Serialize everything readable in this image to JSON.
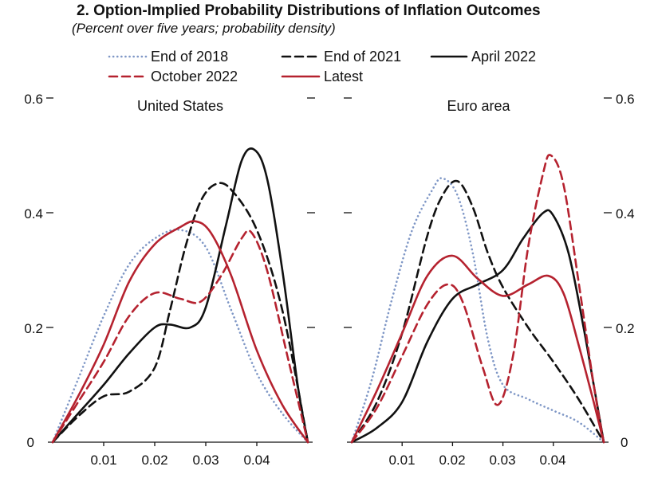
{
  "chart_data": {
    "type": "line",
    "title": "2. Option-Implied Probability Distributions of Inflation Outcomes",
    "subtitle": "(Percent over five years; probability density)",
    "legend": [
      {
        "name": "End of 2018",
        "color": "#7f97c6",
        "style": "dotted"
      },
      {
        "name": "End of 2021",
        "color": "#111111",
        "style": "dashed"
      },
      {
        "name": "April 2022",
        "color": "#111111",
        "style": "solid"
      },
      {
        "name": "October 2022",
        "color": "#b5222f",
        "style": "dashed"
      },
      {
        "name": "Latest",
        "color": "#b5222f",
        "style": "solid"
      }
    ],
    "y_tick_labels": [
      "0",
      "0.2",
      "0.4",
      "0.6"
    ],
    "x_tick_labels": [
      "0.01",
      "0.02",
      "0.03",
      "0.04"
    ],
    "panels": [
      {
        "title": "United States",
        "xlim": [
          0,
          0.05
        ],
        "ylim": [
          0,
          0.6
        ],
        "xticks": [
          0.01,
          0.02,
          0.03,
          0.04
        ],
        "yticks": [
          0,
          0.2,
          0.4,
          0.6
        ],
        "series": [
          {
            "name": "End of 2018",
            "points": [
              [
                0,
                0
              ],
              [
                0.005,
                0.11
              ],
              [
                0.01,
                0.22
              ],
              [
                0.015,
                0.31
              ],
              [
                0.02,
                0.355
              ],
              [
                0.025,
                0.37
              ],
              [
                0.03,
                0.34
              ],
              [
                0.035,
                0.23
              ],
              [
                0.04,
                0.12
              ],
              [
                0.045,
                0.05
              ],
              [
                0.05,
                0
              ]
            ]
          },
          {
            "name": "End of 2021",
            "points": [
              [
                0,
                0
              ],
              [
                0.005,
                0.045
              ],
              [
                0.01,
                0.08
              ],
              [
                0.015,
                0.088
              ],
              [
                0.02,
                0.13
              ],
              [
                0.023,
                0.23
              ],
              [
                0.026,
                0.34
              ],
              [
                0.029,
                0.42
              ],
              [
                0.032,
                0.45
              ],
              [
                0.035,
                0.44
              ],
              [
                0.04,
                0.37
              ],
              [
                0.045,
                0.23
              ],
              [
                0.05,
                0
              ]
            ]
          },
          {
            "name": "April 2022",
            "points": [
              [
                0,
                0
              ],
              [
                0.005,
                0.05
              ],
              [
                0.01,
                0.1
              ],
              [
                0.015,
                0.155
              ],
              [
                0.02,
                0.2
              ],
              [
                0.023,
                0.205
              ],
              [
                0.027,
                0.2
              ],
              [
                0.03,
                0.235
              ],
              [
                0.034,
                0.38
              ],
              [
                0.037,
                0.49
              ],
              [
                0.0395,
                0.51
              ],
              [
                0.042,
                0.46
              ],
              [
                0.045,
                0.3
              ],
              [
                0.048,
                0.1
              ],
              [
                0.05,
                0
              ]
            ]
          },
          {
            "name": "October 2022",
            "points": [
              [
                0,
                0
              ],
              [
                0.005,
                0.07
              ],
              [
                0.01,
                0.14
              ],
              [
                0.015,
                0.22
              ],
              [
                0.02,
                0.26
              ],
              [
                0.025,
                0.25
              ],
              [
                0.029,
                0.245
              ],
              [
                0.033,
                0.29
              ],
              [
                0.037,
                0.355
              ],
              [
                0.039,
                0.365
              ],
              [
                0.042,
                0.3
              ],
              [
                0.046,
                0.15
              ],
              [
                0.05,
                0
              ]
            ]
          },
          {
            "name": "Latest",
            "points": [
              [
                0,
                0
              ],
              [
                0.005,
                0.08
              ],
              [
                0.01,
                0.17
              ],
              [
                0.015,
                0.28
              ],
              [
                0.02,
                0.345
              ],
              [
                0.025,
                0.375
              ],
              [
                0.028,
                0.385
              ],
              [
                0.031,
                0.365
              ],
              [
                0.035,
                0.29
              ],
              [
                0.04,
                0.16
              ],
              [
                0.045,
                0.065
              ],
              [
                0.05,
                0
              ]
            ]
          }
        ]
      },
      {
        "title": "Euro area",
        "xlim": [
          0,
          0.05
        ],
        "ylim": [
          0,
          0.6
        ],
        "xticks": [
          0.01,
          0.02,
          0.03,
          0.04
        ],
        "yticks": [
          0,
          0.2,
          0.4,
          0.6
        ],
        "series": [
          {
            "name": "End of 2018",
            "points": [
              [
                0,
                0
              ],
              [
                0.004,
                0.11
              ],
              [
                0.008,
                0.25
              ],
              [
                0.012,
                0.37
              ],
              [
                0.016,
                0.44
              ],
              [
                0.018,
                0.46
              ],
              [
                0.021,
                0.43
              ],
              [
                0.024,
                0.33
              ],
              [
                0.027,
                0.18
              ],
              [
                0.03,
                0.1
              ],
              [
                0.035,
                0.075
              ],
              [
                0.04,
                0.055
              ],
              [
                0.045,
                0.035
              ],
              [
                0.05,
                0
              ]
            ]
          },
          {
            "name": "End of 2021",
            "points": [
              [
                0,
                0
              ],
              [
                0.005,
                0.07
              ],
              [
                0.01,
                0.19
              ],
              [
                0.015,
                0.36
              ],
              [
                0.018,
                0.43
              ],
              [
                0.021,
                0.455
              ],
              [
                0.024,
                0.41
              ],
              [
                0.027,
                0.33
              ],
              [
                0.03,
                0.27
              ],
              [
                0.035,
                0.2
              ],
              [
                0.04,
                0.14
              ],
              [
                0.045,
                0.075
              ],
              [
                0.05,
                0
              ]
            ]
          },
          {
            "name": "April 2022",
            "points": [
              [
                0,
                0
              ],
              [
                0.005,
                0.025
              ],
              [
                0.01,
                0.07
              ],
              [
                0.015,
                0.175
              ],
              [
                0.02,
                0.25
              ],
              [
                0.025,
                0.275
              ],
              [
                0.03,
                0.3
              ],
              [
                0.034,
                0.355
              ],
              [
                0.038,
                0.4
              ],
              [
                0.04,
                0.395
              ],
              [
                0.043,
                0.33
              ],
              [
                0.046,
                0.2
              ],
              [
                0.048,
                0.1
              ],
              [
                0.05,
                0
              ]
            ]
          },
          {
            "name": "October 2022",
            "points": [
              [
                0,
                0
              ],
              [
                0.005,
                0.06
              ],
              [
                0.01,
                0.15
              ],
              [
                0.015,
                0.24
              ],
              [
                0.019,
                0.275
              ],
              [
                0.022,
                0.245
              ],
              [
                0.026,
                0.13
              ],
              [
                0.029,
                0.065
              ],
              [
                0.032,
                0.15
              ],
              [
                0.035,
                0.34
              ],
              [
                0.038,
                0.47
              ],
              [
                0.0395,
                0.5
              ],
              [
                0.042,
                0.45
              ],
              [
                0.045,
                0.28
              ],
              [
                0.048,
                0.1
              ],
              [
                0.05,
                0
              ]
            ]
          },
          {
            "name": "Latest",
            "points": [
              [
                0,
                0
              ],
              [
                0.005,
                0.09
              ],
              [
                0.01,
                0.19
              ],
              [
                0.015,
                0.29
              ],
              [
                0.02,
                0.325
              ],
              [
                0.025,
                0.285
              ],
              [
                0.03,
                0.255
              ],
              [
                0.035,
                0.275
              ],
              [
                0.039,
                0.29
              ],
              [
                0.042,
                0.26
              ],
              [
                0.045,
                0.17
              ],
              [
                0.048,
                0.07
              ],
              [
                0.05,
                0
              ]
            ]
          }
        ]
      }
    ]
  }
}
